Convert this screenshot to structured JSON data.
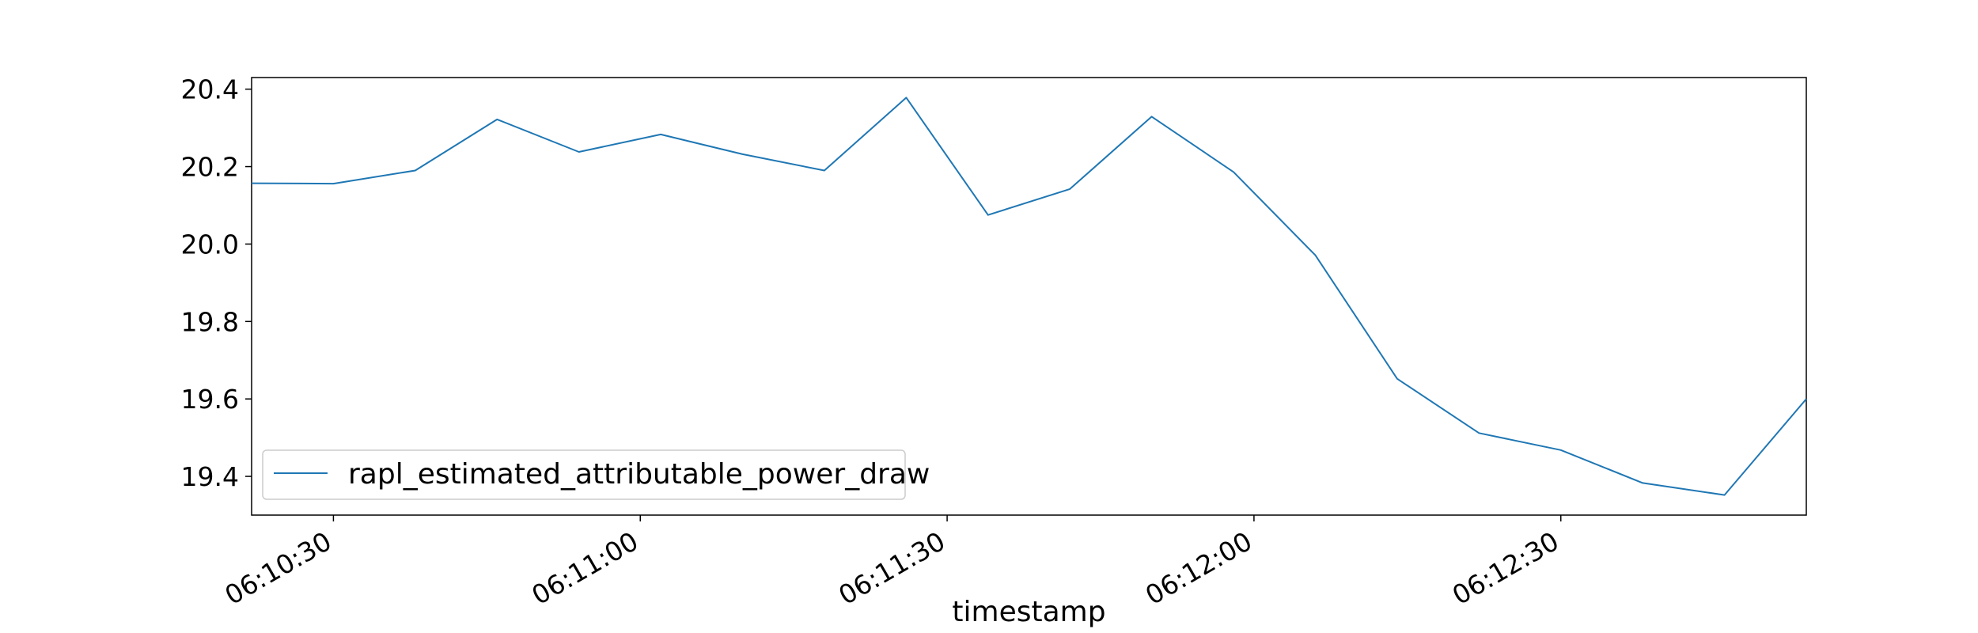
{
  "chart_data": {
    "type": "line",
    "title": "",
    "xlabel": "timestamp",
    "ylabel": "",
    "x": [
      "06:10:22",
      "06:10:30",
      "06:10:38",
      "06:10:46",
      "06:10:54",
      "06:11:02",
      "06:11:10",
      "06:11:18",
      "06:11:26",
      "06:11:34",
      "06:11:42",
      "06:11:50",
      "06:11:58",
      "06:12:06",
      "06:12:14",
      "06:12:22",
      "06:12:30",
      "06:12:38",
      "06:12:46",
      "06:12:54"
    ],
    "series": [
      {
        "name": "rapl_estimated_attributable_power_draw",
        "values": [
          20.157,
          20.156,
          20.19,
          20.322,
          20.238,
          20.283,
          20.232,
          20.19,
          20.378,
          20.075,
          20.142,
          20.329,
          20.186,
          19.971,
          19.652,
          19.512,
          19.468,
          19.383,
          19.352,
          19.6
        ]
      }
    ],
    "xlim": [
      "06:10:22",
      "06:12:54"
    ],
    "ylim": [
      19.3,
      20.43
    ],
    "x_ticks": [
      "06:10:30",
      "06:11:00",
      "06:11:30",
      "06:12:00",
      "06:12:30"
    ],
    "y_ticks": [
      19.4,
      19.6,
      19.8,
      20.0,
      20.2,
      20.4
    ],
    "y_tick_labels": [
      "19.4",
      "19.6",
      "19.8",
      "20.0",
      "20.2",
      "20.4"
    ],
    "grid": false,
    "legend_position": "lower-left",
    "colors": {
      "series": "#1f77b4",
      "axes": "#000000",
      "legend_border": "#cccccc"
    }
  }
}
